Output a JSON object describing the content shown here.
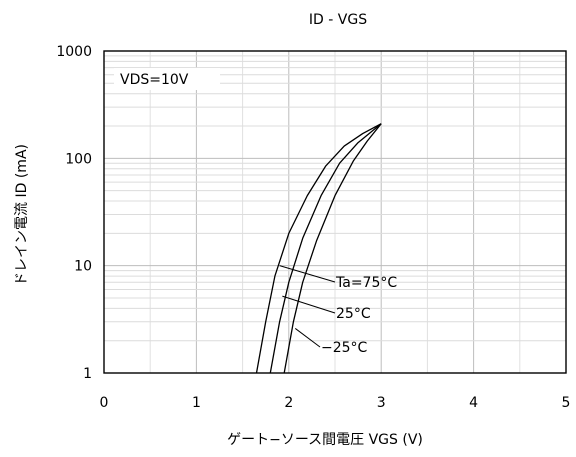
{
  "chart_data": {
    "type": "line",
    "title": "ID - VGS",
    "xlabel": "ゲート−ソース間電圧 VGS (V)",
    "ylabel": "ドレイン電流 ID (mA)",
    "condition": "VDS=10V",
    "x_scale": "linear",
    "y_scale": "log",
    "xlim": [
      0,
      5
    ],
    "ylim": [
      1,
      1000
    ],
    "x_ticks": [
      "0",
      "1",
      "2",
      "3",
      "4",
      "5"
    ],
    "y_ticks": [
      "1",
      "10",
      "100",
      "1000"
    ],
    "grid": true,
    "series": [
      {
        "name": "Ta=75°C",
        "x": [
          1.65,
          1.75,
          1.85,
          2.0,
          2.2,
          2.4,
          2.6,
          2.8,
          3.0
        ],
        "y": [
          1,
          3,
          8,
          20,
          45,
          85,
          130,
          170,
          210
        ]
      },
      {
        "name": "25°C",
        "x": [
          1.8,
          1.9,
          2.0,
          2.15,
          2.35,
          2.55,
          2.75,
          3.0
        ],
        "y": [
          1,
          3,
          7,
          18,
          45,
          90,
          140,
          210
        ]
      },
      {
        "name": "−25°C",
        "x": [
          1.95,
          2.05,
          2.15,
          2.3,
          2.5,
          2.7,
          2.85,
          3.0
        ],
        "y": [
          1,
          3,
          7,
          17,
          45,
          95,
          145,
          210
        ]
      }
    ]
  }
}
